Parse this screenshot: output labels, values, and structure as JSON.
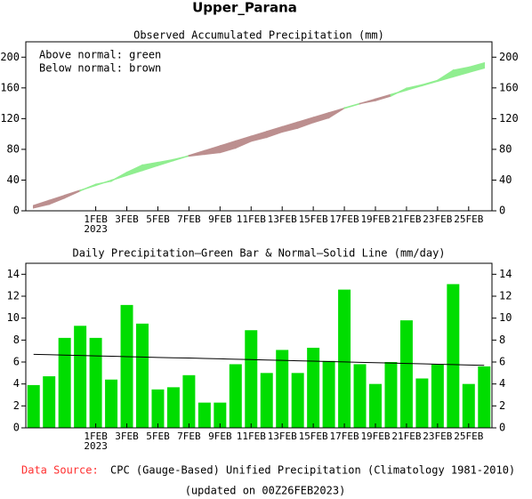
{
  "title": "Upper_Parana",
  "chart_data": [
    {
      "type": "area",
      "title": "Observed Accumulated Precipitation (mm)",
      "annotations": [
        "Above normal: green",
        "Below normal: brown"
      ],
      "categories": [
        null,
        null,
        null,
        null,
        "1FEB",
        null,
        "3FEB",
        null,
        "5FEB",
        null,
        "7FEB",
        null,
        "9FEB",
        null,
        "11FEB",
        null,
        "13FEB",
        null,
        "15FEB",
        null,
        "17FEB",
        null,
        "19FEB",
        null,
        "21FEB",
        null,
        "23FEB",
        null,
        "25FEB",
        null
      ],
      "x_sublabel": "2023",
      "series": [
        {
          "values": [
            3.9,
            8.6,
            16.8,
            26.1,
            34.3,
            38.7,
            49.9,
            59.4,
            62.9,
            66.6,
            71.4,
            73.7,
            76.0,
            81.8,
            90.7,
            95.7,
            102.8,
            107.8,
            115.1,
            121.2,
            133.8,
            139.6,
            143.6,
            149.6,
            159.4,
            163.9,
            169.7,
            182.8,
            186.8,
            192.4
          ]
        },
        {
          "values": [
            6.7,
            13.37,
            20.0,
            26.6,
            33.16,
            39.69,
            46.18,
            52.64,
            59.06,
            65.45,
            71.81,
            78.13,
            84.42,
            90.67,
            96.89,
            103.07,
            109.22,
            115.33,
            121.41,
            127.45,
            133.46,
            139.43,
            145.37,
            151.28,
            157.15,
            162.99,
            168.79,
            174.56,
            180.29,
            185.99
          ]
        }
      ],
      "above_color": "#90ee90",
      "below_color": "#bc8f8f",
      "ylim": [
        0,
        220
      ],
      "yticks": [
        0,
        40,
        80,
        120,
        160,
        200
      ]
    },
    {
      "type": "bar",
      "title": "Daily Precipitation—Green Bar & Normal—Solid Line (mm/day)",
      "categories": [
        null,
        null,
        null,
        null,
        "1FEB",
        null,
        "3FEB",
        null,
        "5FEB",
        null,
        "7FEB",
        null,
        "9FEB",
        null,
        "11FEB",
        null,
        "13FEB",
        null,
        "15FEB",
        null,
        "17FEB",
        null,
        "19FEB",
        null,
        "21FEB",
        null,
        "23FEB",
        null,
        "25FEB",
        null
      ],
      "x_sublabel": "2023",
      "series": [
        {
          "color": "#00dd00",
          "values": [
            3.9,
            4.7,
            8.2,
            9.3,
            8.2,
            4.4,
            11.2,
            9.5,
            3.5,
            3.7,
            4.8,
            2.3,
            2.3,
            5.8,
            8.9,
            5.0,
            7.1,
            5.0,
            7.3,
            6.1,
            12.6,
            5.8,
            4.0,
            6.0,
            9.8,
            4.5,
            5.8,
            13.1,
            4.0,
            5.6
          ]
        },
        {
          "color": "#000000",
          "values": [
            6.7,
            6.67,
            6.63,
            6.6,
            6.56,
            6.53,
            6.49,
            6.46,
            6.42,
            6.39,
            6.36,
            6.32,
            6.29,
            6.25,
            6.22,
            6.18,
            6.15,
            6.11,
            6.08,
            6.04,
            6.01,
            5.97,
            5.94,
            5.91,
            5.87,
            5.84,
            5.8,
            5.77,
            5.73,
            5.7
          ]
        }
      ],
      "ylim": [
        0,
        15
      ],
      "yticks": [
        0,
        2,
        4,
        6,
        8,
        10,
        12,
        14
      ]
    }
  ],
  "footer": {
    "source_label": "Data Source:",
    "source": "CPC (Gauge-Based) Unified Precipitation (Climatology 1981-2010)",
    "updated": "(updated on 00Z26FEB2023)"
  }
}
